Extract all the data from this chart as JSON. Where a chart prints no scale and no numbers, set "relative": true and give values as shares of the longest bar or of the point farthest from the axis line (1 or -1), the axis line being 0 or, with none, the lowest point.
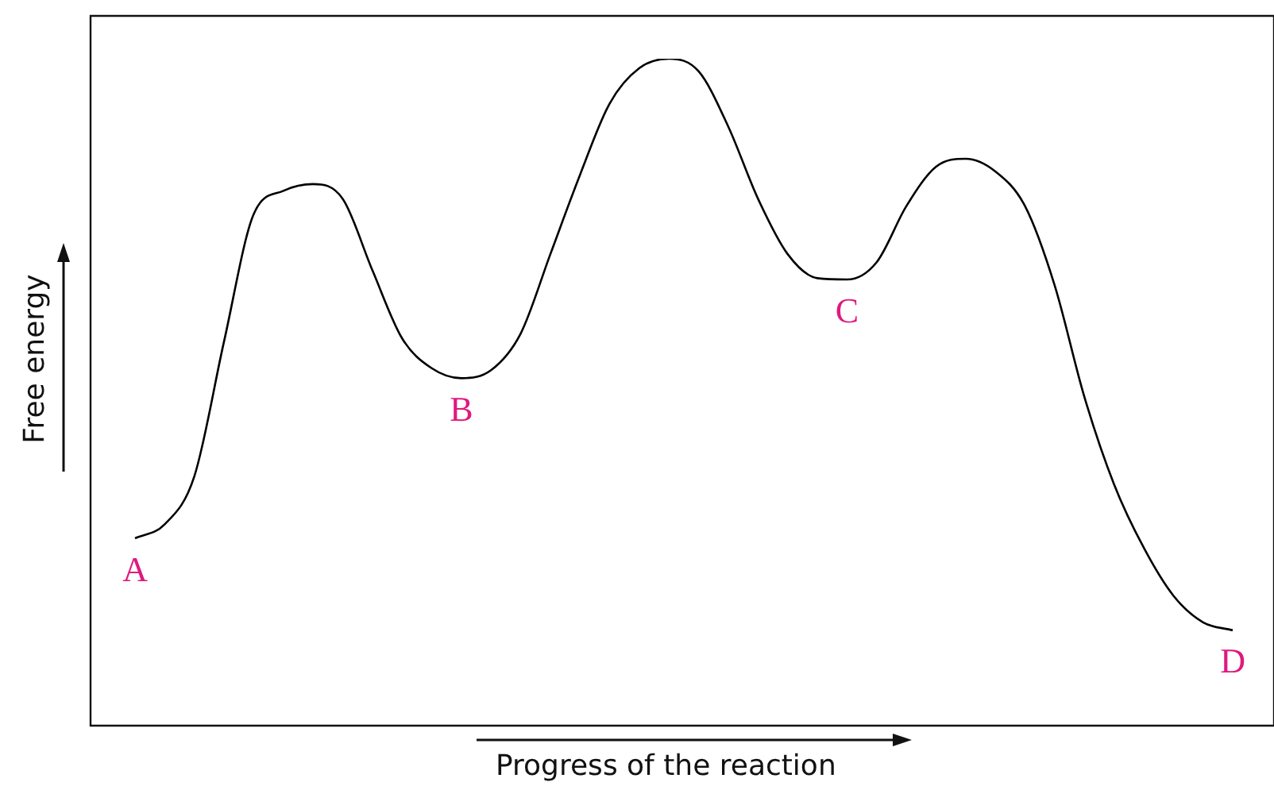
{
  "chart_data": {
    "type": "line",
    "relative": true,
    "xlabel": "Progress of the reaction",
    "ylabel": "Free energy",
    "categories": [
      null,
      null,
      null,
      null,
      null,
      null,
      null,
      null,
      null,
      null,
      null,
      null,
      null,
      null,
      null,
      null,
      null,
      null,
      null,
      null,
      null,
      null,
      null,
      null,
      null,
      null,
      null,
      null,
      null,
      null,
      null,
      null,
      null,
      null,
      null,
      null,
      null,
      null
    ],
    "series": [
      {
        "color": "#000000",
        "values": [
          0.281,
          0.302,
          0.374,
          0.576,
          0.767,
          0.802,
          0.812,
          0.79,
          0.683,
          0.581,
          0.536,
          0.521,
          0.533,
          0.588,
          0.707,
          0.826,
          0.933,
          0.986,
          1,
          0.981,
          0.898,
          0.79,
          0.707,
          0.671,
          0.669,
          0.695,
          0.779,
          0.838,
          0.85,
          0.831,
          0.779,
          0.66,
          0.493,
          0.362,
          0.267,
          0.195,
          0.155,
          0.143
        ]
      }
    ],
    "annotations": [
      {
        "text": "A",
        "y": 0.281
      },
      {
        "text": "B",
        "y": 0.521
      },
      {
        "text": "C",
        "y": 0.669
      },
      {
        "text": "D",
        "y": 0.143
      }
    ],
    "marker": "none"
  }
}
